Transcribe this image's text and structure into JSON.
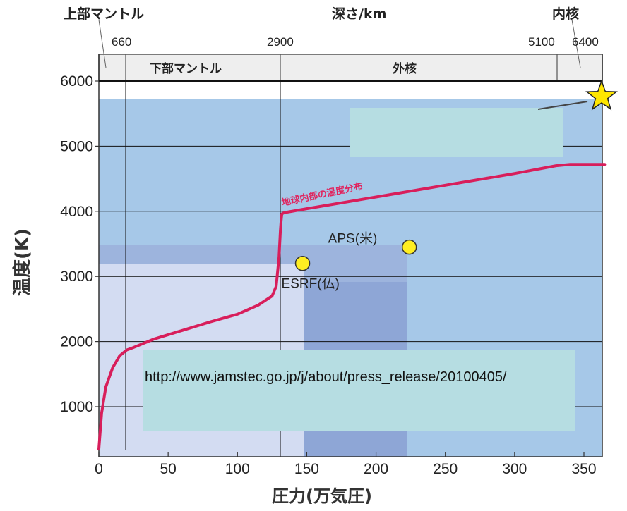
{
  "colors": {
    "curve": "#d81e5b",
    "region_main": "#a6c8e8",
    "region_light": "#d3dcf2",
    "region_mid": "#9db4dd",
    "region_dark": "#8ea6d6",
    "overlay": "#b6dde2",
    "point": "#ffee22",
    "star": "#ffe600"
  },
  "header": {
    "top_left_label": "上部マントル",
    "depth_title": "深さ/km",
    "top_right_label": "内核",
    "depth_ticks": [
      "660",
      "2900",
      "5100",
      "6400"
    ],
    "layers": [
      {
        "name": "下部マントル"
      },
      {
        "name": "外核"
      }
    ]
  },
  "overlay_url": "http://www.jamstec.go.jp/j/about/press_release/20100405/",
  "chart_data": {
    "type": "line",
    "xlabel": "圧力(万気圧)",
    "ylabel": "温度(K)",
    "xlim": [
      0,
      365
    ],
    "ylim": [
      300,
      6000
    ],
    "xticks": [
      0,
      50,
      100,
      150,
      200,
      250,
      300,
      350
    ],
    "yticks": [
      1000,
      2000,
      3000,
      4000,
      5000,
      6000
    ],
    "grid": true,
    "series": [
      {
        "name": "地球内部の温度分布",
        "x": [
          0,
          2,
          5,
          10,
          15,
          20,
          24,
          40,
          60,
          80,
          100,
          115,
          125,
          128,
          130,
          131,
          131.5,
          132,
          134,
          150,
          200,
          250,
          300,
          330,
          340,
          365
        ],
        "y": [
          350,
          900,
          1300,
          1600,
          1780,
          1870,
          1900,
          2040,
          2170,
          2300,
          2420,
          2560,
          2700,
          2850,
          3300,
          3700,
          3850,
          3960,
          3980,
          4040,
          4220,
          4400,
          4580,
          4700,
          4720,
          4720
        ]
      }
    ],
    "points": [
      {
        "label": "APS(米)",
        "x": 224,
        "y": 3450
      },
      {
        "label": "ESRF(仏)",
        "x": 147,
        "y": 3200
      }
    ]
  }
}
